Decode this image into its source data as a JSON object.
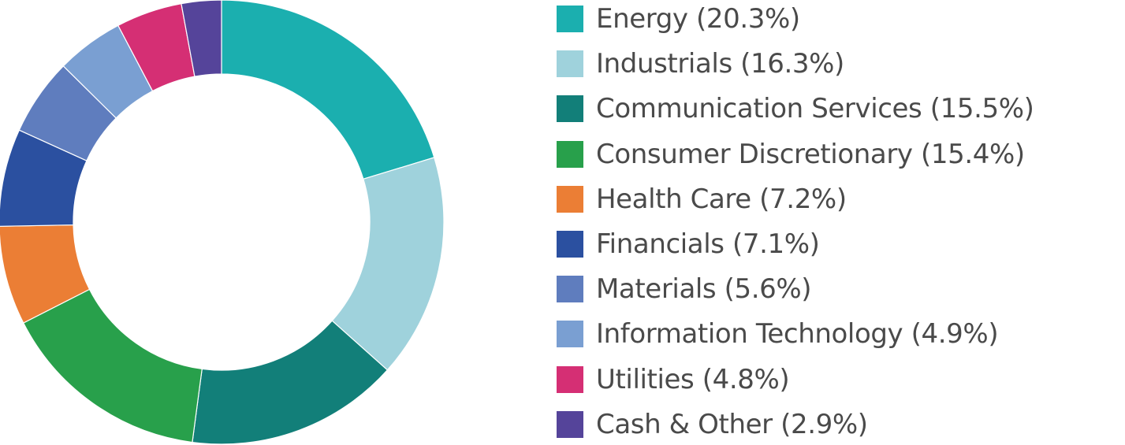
{
  "chart_data": {
    "type": "pie",
    "variant": "donut",
    "title": "",
    "legend_position": "right",
    "slices": [
      {
        "label": "Energy (20.3%)",
        "category": "Energy",
        "value": 20.3,
        "color": "#1BAFAF"
      },
      {
        "label": "Industrials (16.3%)",
        "category": "Industrials",
        "value": 16.3,
        "color": "#9FD2DC"
      },
      {
        "label": "Communication Services (15.5%)",
        "category": "Communication Services",
        "value": 15.5,
        "color": "#127F79"
      },
      {
        "label": "Consumer Discretionary (15.4%)",
        "category": "Consumer Discretionary",
        "value": 15.4,
        "color": "#28A04B"
      },
      {
        "label": "Health Care (7.2%)",
        "category": "Health Care",
        "value": 7.2,
        "color": "#EB7E35"
      },
      {
        "label": "Financials (7.1%)",
        "category": "Financials",
        "value": 7.1,
        "color": "#2B50A0"
      },
      {
        "label": "Materials (5.6%)",
        "category": "Materials",
        "value": 5.6,
        "color": "#5F7DBE"
      },
      {
        "label": "Information Technology (4.9%)",
        "category": "Information Technology",
        "value": 4.9,
        "color": "#7A9FD2"
      },
      {
        "label": "Utilities (4.8%)",
        "category": "Utilities",
        "value": 4.8,
        "color": "#D52F74"
      },
      {
        "label": "Cash & Other (2.9%)",
        "category": "Cash & Other",
        "value": 2.9,
        "color": "#55449A"
      }
    ]
  }
}
